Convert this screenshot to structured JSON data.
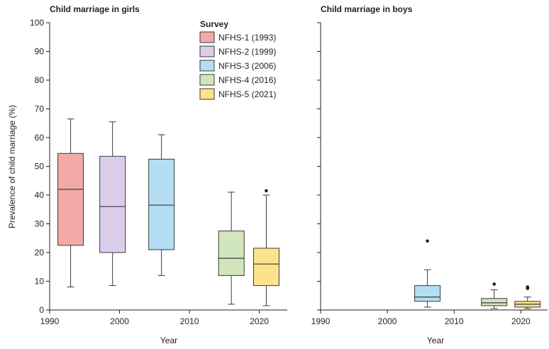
{
  "colors": {
    "NFHS-1 (1993)": "#f1aaa8",
    "NFHS-2 (1999)": "#dccdea",
    "NFHS-3 (2006)": "#b3ddf2",
    "NFHS-4 (2016)": "#d2e6bd",
    "NFHS-5 (2021)": "#fde28c",
    "stroke": "#3a3a3a",
    "axis": "#231f20"
  },
  "legend": {
    "title": "Survey",
    "items": [
      "NFHS-1 (1993)",
      "NFHS-2 (1999)",
      "NFHS-3 (2006)",
      "NFHS-4 (2016)",
      "NFHS-5 (2021)"
    ]
  },
  "chart_data": [
    {
      "type": "box",
      "title": "Child marriage in girls",
      "xlabel": "Year",
      "ylabel": "Prevalence of child marriage (%)",
      "xlim": [
        1990,
        2024
      ],
      "ylim": [
        0,
        100
      ],
      "xticks": [
        1990,
        2000,
        2010,
        2020
      ],
      "yticks": [
        0,
        10,
        20,
        30,
        40,
        50,
        60,
        70,
        80,
        90,
        100
      ],
      "boxes": [
        {
          "series": "NFHS-1 (1993)",
          "x": 1993,
          "whisker_low": 8,
          "q1": 22.5,
          "median": 42,
          "q3": 54.5,
          "whisker_high": 66.5,
          "outliers": []
        },
        {
          "series": "NFHS-2 (1999)",
          "x": 1999,
          "whisker_low": 8.5,
          "q1": 20,
          "median": 36,
          "q3": 53.5,
          "whisker_high": 65.5,
          "outliers": []
        },
        {
          "series": "NFHS-3 (2006)",
          "x": 2006,
          "whisker_low": 12,
          "q1": 21,
          "median": 36.5,
          "q3": 52.5,
          "whisker_high": 61,
          "outliers": []
        },
        {
          "series": "NFHS-4 (2016)",
          "x": 2016,
          "whisker_low": 2,
          "q1": 12,
          "median": 18,
          "q3": 27.5,
          "whisker_high": 41,
          "outliers": []
        },
        {
          "series": "NFHS-5 (2021)",
          "x": 2021,
          "whisker_low": 1.5,
          "q1": 8.5,
          "median": 16,
          "q3": 21.5,
          "whisker_high": 40,
          "outliers": [
            41.5
          ]
        }
      ]
    },
    {
      "type": "box",
      "title": "Child marriage in boys",
      "xlabel": "Year",
      "ylabel": "",
      "xlim": [
        1990,
        2024
      ],
      "ylim": [
        0,
        100
      ],
      "xticks": [
        1990,
        2000,
        2010,
        2020
      ],
      "yticks": [
        0,
        10,
        20,
        30,
        40,
        50,
        60,
        70,
        80,
        90,
        100
      ],
      "boxes": [
        {
          "series": "NFHS-3 (2006)",
          "x": 2006,
          "whisker_low": 1,
          "q1": 3,
          "median": 4.5,
          "q3": 8.5,
          "whisker_high": 14,
          "outliers": [
            24
          ]
        },
        {
          "series": "NFHS-4 (2016)",
          "x": 2016,
          "whisker_low": 0.5,
          "q1": 1.5,
          "median": 2.5,
          "q3": 4,
          "whisker_high": 7,
          "outliers": [
            9
          ]
        },
        {
          "series": "NFHS-5 (2021)",
          "x": 2021,
          "whisker_low": 0.5,
          "q1": 1,
          "median": 2,
          "q3": 3,
          "whisker_high": 4.5,
          "outliers": [
            7.5,
            8
          ]
        }
      ]
    }
  ]
}
